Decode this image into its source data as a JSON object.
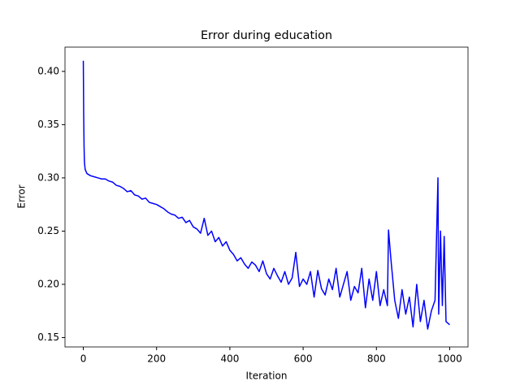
{
  "chart_data": {
    "type": "line",
    "title": "Error during education",
    "x_label": "Iteration",
    "y_label": "Error",
    "x": [
      0,
      1,
      2,
      3,
      5,
      10,
      20,
      30,
      40,
      50,
      60,
      70,
      80,
      90,
      100,
      110,
      120,
      130,
      140,
      150,
      160,
      170,
      180,
      190,
      200,
      210,
      220,
      230,
      240,
      250,
      260,
      270,
      280,
      290,
      300,
      310,
      320,
      330,
      340,
      350,
      360,
      370,
      380,
      390,
      400,
      410,
      420,
      430,
      440,
      450,
      460,
      470,
      480,
      490,
      500,
      510,
      520,
      530,
      540,
      550,
      560,
      570,
      580,
      590,
      600,
      610,
      620,
      630,
      640,
      650,
      660,
      670,
      680,
      690,
      700,
      710,
      720,
      730,
      740,
      750,
      760,
      770,
      780,
      790,
      800,
      810,
      820,
      830,
      833,
      840,
      850,
      860,
      870,
      880,
      890,
      900,
      910,
      920,
      930,
      940,
      950,
      960,
      968,
      970,
      975,
      980,
      985,
      990,
      1000
    ],
    "series": [
      {
        "color": "#0000ff",
        "values": [
          0.41,
          0.36,
          0.33,
          0.315,
          0.308,
          0.304,
          0.302,
          0.301,
          0.3,
          0.299,
          0.299,
          0.297,
          0.296,
          0.293,
          0.292,
          0.29,
          0.287,
          0.288,
          0.284,
          0.283,
          0.28,
          0.281,
          0.277,
          0.276,
          0.275,
          0.273,
          0.271,
          0.268,
          0.266,
          0.265,
          0.262,
          0.263,
          0.258,
          0.26,
          0.254,
          0.252,
          0.248,
          0.262,
          0.246,
          0.25,
          0.24,
          0.244,
          0.236,
          0.24,
          0.232,
          0.228,
          0.222,
          0.225,
          0.219,
          0.215,
          0.221,
          0.218,
          0.212,
          0.222,
          0.21,
          0.205,
          0.215,
          0.208,
          0.202,
          0.212,
          0.2,
          0.206,
          0.23,
          0.198,
          0.205,
          0.2,
          0.212,
          0.188,
          0.213,
          0.196,
          0.19,
          0.205,
          0.195,
          0.215,
          0.188,
          0.2,
          0.212,
          0.185,
          0.198,
          0.192,
          0.215,
          0.178,
          0.205,
          0.185,
          0.212,
          0.18,
          0.195,
          0.18,
          0.251,
          0.222,
          0.185,
          0.168,
          0.195,
          0.172,
          0.188,
          0.16,
          0.2,
          0.165,
          0.185,
          0.158,
          0.175,
          0.185,
          0.3,
          0.172,
          0.25,
          0.18,
          0.245,
          0.165,
          0.162
        ]
      }
    ],
    "xlim": [
      -50,
      1050
    ],
    "ylim": [
      0.1412,
      0.4228
    ],
    "xticks": [
      0,
      200,
      400,
      600,
      800,
      1000
    ],
    "yticks": [
      0.15,
      {
        "value": 0.2,
        "label": "0.20"
      },
      0.25,
      {
        "value": 0.3,
        "label": "0.30"
      },
      0.35,
      {
        "value": 0.4,
        "label": "0.40"
      }
    ]
  }
}
